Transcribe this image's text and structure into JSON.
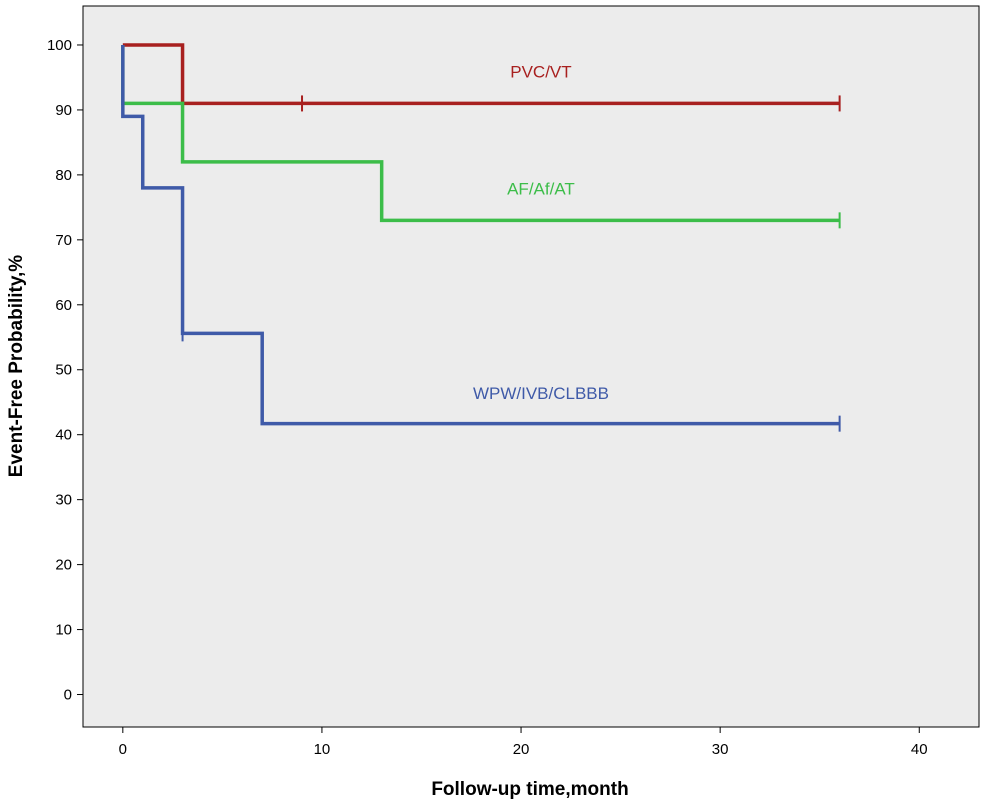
{
  "chart_data": {
    "type": "line",
    "subtype": "kaplan-meier-step",
    "title": "",
    "xlabel": "Follow-up time,month",
    "ylabel": "Event-Free Probability,%",
    "xlim": [
      -2,
      43
    ],
    "ylim": [
      -5,
      106
    ],
    "xticks": [
      0,
      10,
      20,
      30,
      40
    ],
    "yticks": [
      0,
      10,
      20,
      30,
      40,
      50,
      60,
      70,
      80,
      90,
      100
    ],
    "grid": false,
    "legend": "none",
    "background_color": "#ececec",
    "series": [
      {
        "name": "PVC/VT",
        "color": "#a8201f",
        "steps": [
          [
            0,
            100
          ],
          [
            3,
            91
          ],
          [
            36,
            91
          ]
        ],
        "censored": [
          [
            9,
            91
          ],
          [
            36,
            91
          ]
        ],
        "label_at": [
          21,
          95
        ]
      },
      {
        "name": "AF/Af/AT",
        "color": "#3cbd49",
        "steps": [
          [
            0,
            100
          ],
          [
            0,
            91
          ],
          [
            3,
            82
          ],
          [
            13,
            73
          ],
          [
            36,
            73
          ]
        ],
        "censored": [
          [
            36,
            73
          ]
        ],
        "label_at": [
          21,
          77
        ]
      },
      {
        "name": "WPW/IVB/CLBBB",
        "color": "#3f5aa8",
        "steps": [
          [
            0,
            100
          ],
          [
            0,
            89
          ],
          [
            1,
            78
          ],
          [
            3,
            55.6
          ],
          [
            7,
            41.7
          ],
          [
            36,
            41.7
          ]
        ],
        "censored": [
          [
            3,
            55.6
          ],
          [
            36,
            41.7
          ]
        ],
        "label_at": [
          21,
          45.5
        ]
      }
    ]
  }
}
